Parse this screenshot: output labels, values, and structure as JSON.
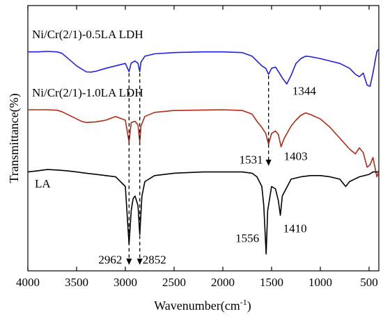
{
  "chart_data": {
    "type": "line",
    "title": "",
    "xlabel": "Wavenumber(cm",
    "xlabel_sup": "-1",
    "xlabel_close": ")",
    "ylabel": "Transmittance(%)",
    "x_reversed": true,
    "xlim": [
      4000,
      400
    ],
    "ylim": [
      -0.05,
      1.05
    ],
    "y_ticks_shown": false,
    "x_ticks": [
      4000,
      3500,
      3000,
      2500,
      2000,
      1500,
      1000,
      500
    ],
    "x_tick_labels": [
      "4000",
      "3500",
      "3000",
      "2500",
      "2000",
      "1500",
      "1000",
      "500"
    ],
    "series": [
      {
        "name": "Ni/Cr(2/1)-0.5LA LDH",
        "color": "#1f1fe6",
        "points": [
          [
            4000,
            0.858
          ],
          [
            3900,
            0.858
          ],
          [
            3800,
            0.86
          ],
          [
            3700,
            0.858
          ],
          [
            3650,
            0.852
          ],
          [
            3600,
            0.835
          ],
          [
            3500,
            0.8
          ],
          [
            3400,
            0.775
          ],
          [
            3350,
            0.774
          ],
          [
            3300,
            0.778
          ],
          [
            3200,
            0.79
          ],
          [
            3100,
            0.8
          ],
          [
            3000,
            0.81
          ],
          [
            2962,
            0.776
          ],
          [
            2940,
            0.812
          ],
          [
            2900,
            0.82
          ],
          [
            2870,
            0.81
          ],
          [
            2852,
            0.776
          ],
          [
            2840,
            0.815
          ],
          [
            2800,
            0.84
          ],
          [
            2700,
            0.85
          ],
          [
            2500,
            0.855
          ],
          [
            2200,
            0.858
          ],
          [
            2000,
            0.858
          ],
          [
            1800,
            0.855
          ],
          [
            1700,
            0.84
          ],
          [
            1650,
            0.82
          ],
          [
            1600,
            0.8
          ],
          [
            1560,
            0.79
          ],
          [
            1531,
            0.765
          ],
          [
            1500,
            0.79
          ],
          [
            1460,
            0.795
          ],
          [
            1420,
            0.77
          ],
          [
            1390,
            0.75
          ],
          [
            1344,
            0.725
          ],
          [
            1300,
            0.76
          ],
          [
            1250,
            0.81
          ],
          [
            1200,
            0.83
          ],
          [
            1150,
            0.84
          ],
          [
            1100,
            0.838
          ],
          [
            1000,
            0.83
          ],
          [
            900,
            0.82
          ],
          [
            800,
            0.81
          ],
          [
            700,
            0.79
          ],
          [
            640,
            0.765
          ],
          [
            600,
            0.755
          ],
          [
            560,
            0.77
          ],
          [
            520,
            0.72
          ],
          [
            490,
            0.715
          ],
          [
            460,
            0.77
          ],
          [
            420,
            0.86
          ],
          [
            400,
            0.87
          ]
        ]
      },
      {
        "name": "Ni/Cr(2/1)-1.0LA LDH",
        "color": "#b22a15",
        "points": [
          [
            4000,
            0.618
          ],
          [
            3900,
            0.618
          ],
          [
            3800,
            0.618
          ],
          [
            3700,
            0.616
          ],
          [
            3650,
            0.61
          ],
          [
            3600,
            0.6
          ],
          [
            3500,
            0.58
          ],
          [
            3450,
            0.57
          ],
          [
            3400,
            0.565
          ],
          [
            3300,
            0.568
          ],
          [
            3200,
            0.575
          ],
          [
            3100,
            0.59
          ],
          [
            3000,
            0.575
          ],
          [
            2962,
            0.485
          ],
          [
            2940,
            0.565
          ],
          [
            2900,
            0.57
          ],
          [
            2870,
            0.555
          ],
          [
            2852,
            0.485
          ],
          [
            2840,
            0.55
          ],
          [
            2800,
            0.59
          ],
          [
            2700,
            0.607
          ],
          [
            2500,
            0.615
          ],
          [
            2200,
            0.617
          ],
          [
            2000,
            0.618
          ],
          [
            1800,
            0.615
          ],
          [
            1700,
            0.6
          ],
          [
            1650,
            0.57
          ],
          [
            1600,
            0.545
          ],
          [
            1560,
            0.52
          ],
          [
            1531,
            0.475
          ],
          [
            1500,
            0.52
          ],
          [
            1460,
            0.53
          ],
          [
            1430,
            0.515
          ],
          [
            1403,
            0.465
          ],
          [
            1370,
            0.5
          ],
          [
            1300,
            0.55
          ],
          [
            1250,
            0.575
          ],
          [
            1200,
            0.595
          ],
          [
            1150,
            0.605
          ],
          [
            1100,
            0.598
          ],
          [
            1000,
            0.58
          ],
          [
            900,
            0.545
          ],
          [
            800,
            0.5
          ],
          [
            700,
            0.455
          ],
          [
            640,
            0.435
          ],
          [
            600,
            0.46
          ],
          [
            560,
            0.44
          ],
          [
            520,
            0.38
          ],
          [
            490,
            0.39
          ],
          [
            460,
            0.42
          ],
          [
            420,
            0.34
          ],
          [
            400,
            0.36
          ]
        ]
      },
      {
        "name": "LA",
        "color": "#000000",
        "points": [
          [
            4000,
            0.36
          ],
          [
            3900,
            0.365
          ],
          [
            3800,
            0.37
          ],
          [
            3700,
            0.368
          ],
          [
            3600,
            0.365
          ],
          [
            3500,
            0.36
          ],
          [
            3400,
            0.355
          ],
          [
            3300,
            0.35
          ],
          [
            3200,
            0.345
          ],
          [
            3100,
            0.34
          ],
          [
            3000,
            0.3
          ],
          [
            2962,
            0.06
          ],
          [
            2940,
            0.2
          ],
          [
            2920,
            0.25
          ],
          [
            2900,
            0.26
          ],
          [
            2870,
            0.22
          ],
          [
            2852,
            0.1
          ],
          [
            2830,
            0.26
          ],
          [
            2800,
            0.32
          ],
          [
            2700,
            0.345
          ],
          [
            2500,
            0.355
          ],
          [
            2200,
            0.36
          ],
          [
            2000,
            0.36
          ],
          [
            1800,
            0.36
          ],
          [
            1700,
            0.355
          ],
          [
            1650,
            0.34
          ],
          [
            1600,
            0.3
          ],
          [
            1580,
            0.22
          ],
          [
            1556,
            0.02
          ],
          [
            1540,
            0.2
          ],
          [
            1500,
            0.3
          ],
          [
            1460,
            0.29
          ],
          [
            1430,
            0.24
          ],
          [
            1410,
            0.18
          ],
          [
            1390,
            0.26
          ],
          [
            1300,
            0.33
          ],
          [
            1200,
            0.34
          ],
          [
            1100,
            0.345
          ],
          [
            1000,
            0.345
          ],
          [
            900,
            0.34
          ],
          [
            800,
            0.33
          ],
          [
            740,
            0.3
          ],
          [
            700,
            0.32
          ],
          [
            600,
            0.34
          ],
          [
            500,
            0.35
          ],
          [
            460,
            0.36
          ],
          [
            420,
            0.36
          ],
          [
            400,
            0.36
          ]
        ]
      }
    ],
    "annotations": {
      "peak_labels": [
        {
          "text": "1344",
          "x": 1344,
          "y": 0.68
        },
        {
          "text": "1531",
          "x": 1531,
          "y": 0.395
        },
        {
          "text": "1403",
          "x": 1403,
          "y": 0.41
        },
        {
          "text": "1556",
          "x": 1556,
          "y": 0.07
        },
        {
          "text": "1410",
          "x": 1410,
          "y": 0.11
        },
        {
          "text": "2962",
          "x": 2962,
          "y": -0.02
        },
        {
          "text": "2852",
          "x": 2852,
          "y": -0.02
        }
      ],
      "dashed_arrows": [
        {
          "x": 2962,
          "y_from": 0.77,
          "y_to": -0.025
        },
        {
          "x": 2852,
          "y_from": 0.77,
          "y_to": -0.025
        },
        {
          "x": 1531,
          "y_from": 0.76,
          "y_to": 0.385
        }
      ]
    }
  }
}
